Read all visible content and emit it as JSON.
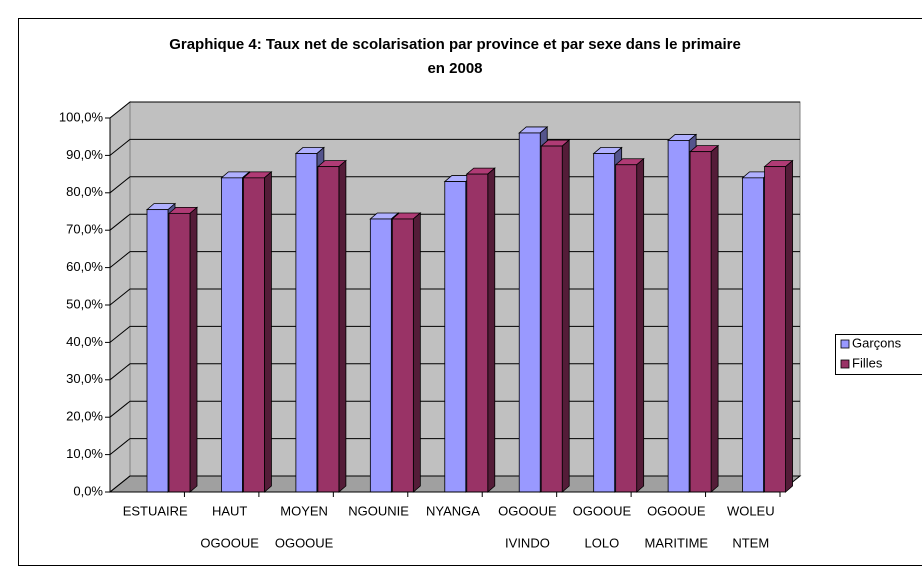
{
  "chart_data": {
    "type": "bar3d",
    "title": [
      "Graphique 4: Taux net de scolarisation par province et par sexe dans le primaire",
      "en 2008"
    ],
    "categories": [
      [
        "ESTUAIRE"
      ],
      [
        "HAUT",
        "OGOOUE"
      ],
      [
        "MOYEN",
        "OGOOUE"
      ],
      [
        "NGOUNIE"
      ],
      [
        "NYANGA"
      ],
      [
        "OGOOUE",
        "IVINDO"
      ],
      [
        "OGOOUE",
        "LOLO"
      ],
      [
        "OGOOUE",
        "MARITIME"
      ],
      [
        "WOLEU",
        "NTEM"
      ]
    ],
    "series": [
      {
        "name": "Garçons",
        "color": "#9999ff",
        "values": [
          75.5,
          84,
          90.5,
          73,
          83,
          96,
          90.5,
          94,
          84
        ]
      },
      {
        "name": "Filles",
        "color": "#993366",
        "values": [
          74.5,
          84,
          87,
          73,
          85,
          92.5,
          87.5,
          91,
          87
        ]
      }
    ],
    "ylim": [
      0,
      100
    ],
    "yticks": [
      {
        "value": 0,
        "label": "0,0%"
      },
      {
        "value": 10,
        "label": "10,0%"
      },
      {
        "value": 20,
        "label": "20,0%"
      },
      {
        "value": 30,
        "label": "30,0%"
      },
      {
        "value": 40,
        "label": "40,0%"
      },
      {
        "value": 50,
        "label": "50,0%"
      },
      {
        "value": 60,
        "label": "60,0%"
      },
      {
        "value": 70,
        "label": "70,0%"
      },
      {
        "value": 80,
        "label": "80,0%"
      },
      {
        "value": 90,
        "label": "90,0%"
      },
      {
        "value": 100,
        "label": "100,0%"
      }
    ],
    "grid": true,
    "legend": "right"
  }
}
